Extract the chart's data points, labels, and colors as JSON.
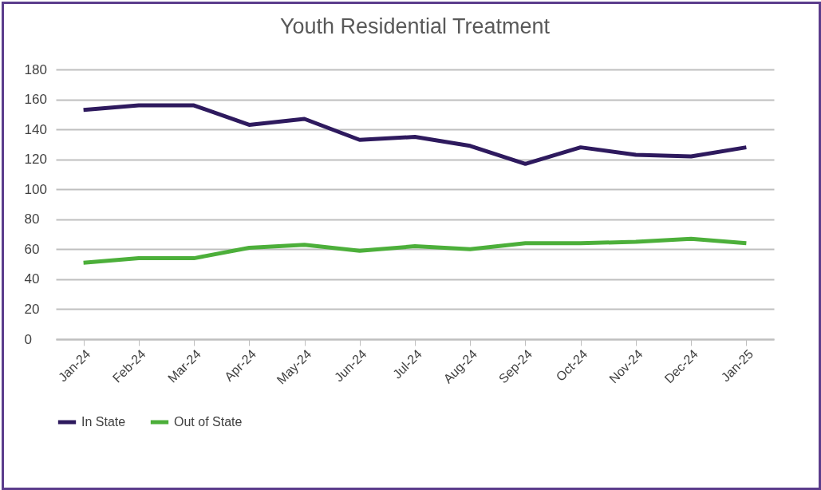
{
  "chart_data": {
    "type": "line",
    "title": "Youth Residential Treatment",
    "categories": [
      "Jan-24",
      "Feb-24",
      "Mar-24",
      "Apr-24",
      "May-24",
      "Jun-24",
      "Jul-24",
      "Aug-24",
      "Sep-24",
      "Oct-24",
      "Nov-24",
      "Dec-24",
      "Jan-25"
    ],
    "series": [
      {
        "name": "In State",
        "color": "#2e1a5e",
        "values": [
          153,
          156,
          156,
          143,
          147,
          133,
          135,
          129,
          117,
          128,
          123,
          122,
          128
        ]
      },
      {
        "name": "Out of State",
        "color": "#4caf3a",
        "values": [
          51,
          54,
          54,
          61,
          63,
          59,
          62,
          60,
          64,
          64,
          65,
          67,
          64
        ]
      }
    ],
    "ylim": [
      0,
      180
    ],
    "yticks": [
      0,
      20,
      40,
      60,
      80,
      100,
      120,
      140,
      160,
      180
    ],
    "grid": "y",
    "legend": "bottom",
    "marker": "none",
    "line_style": "solid"
  }
}
